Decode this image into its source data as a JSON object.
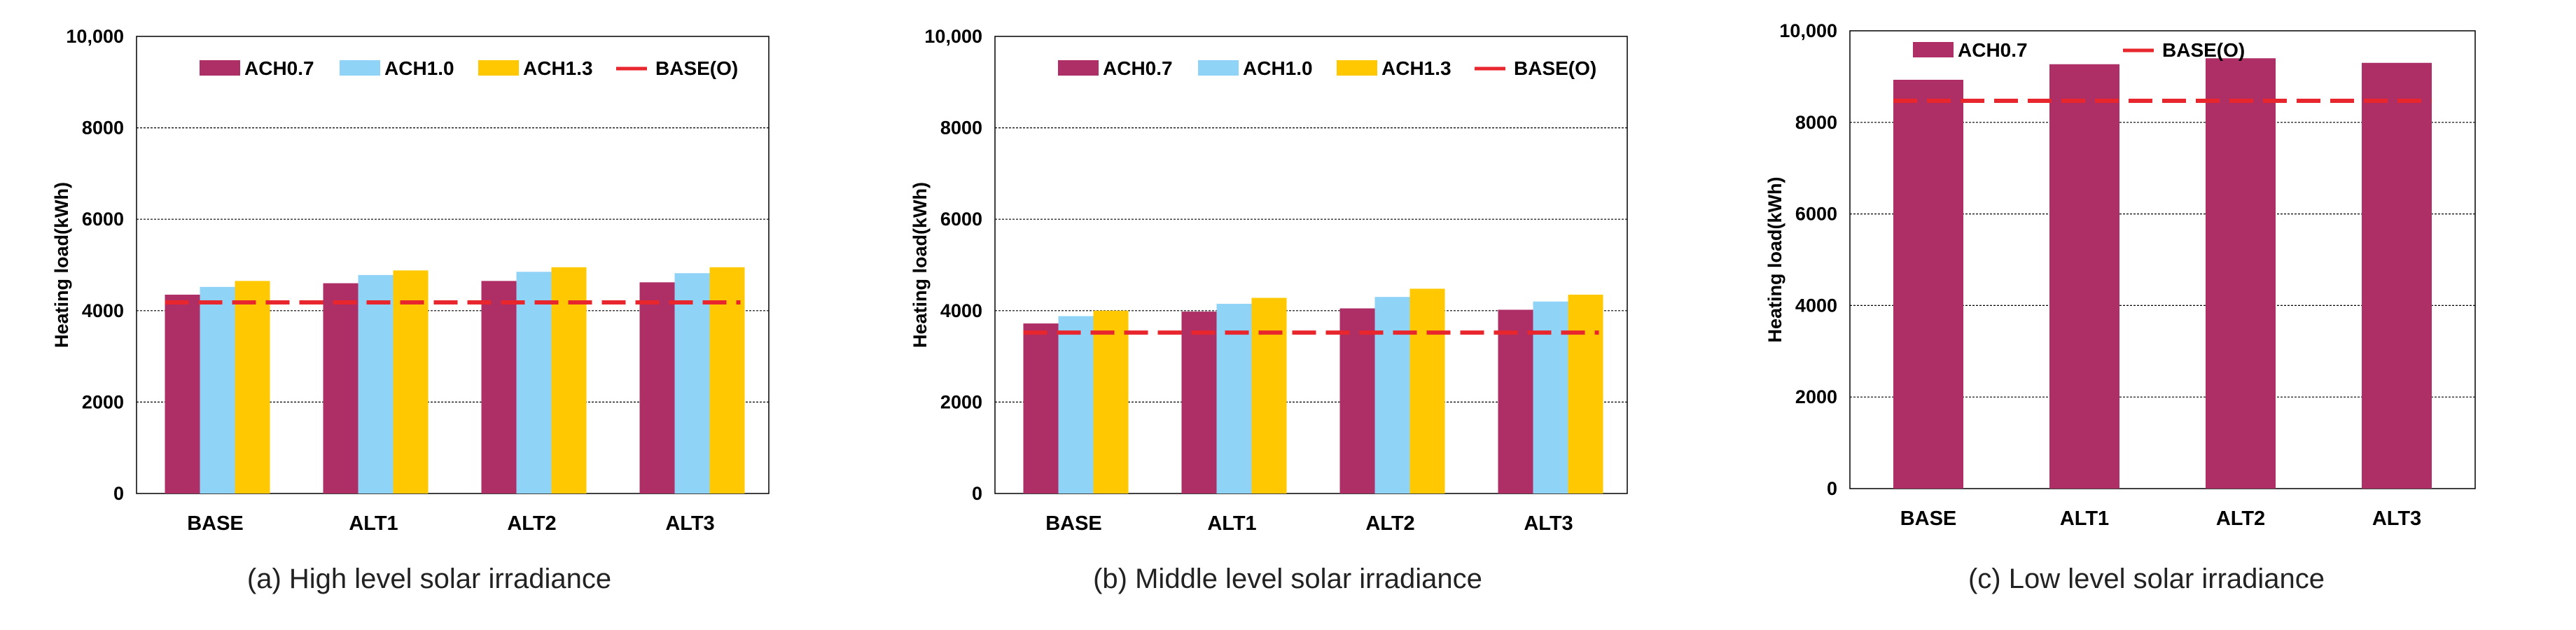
{
  "chart_data": [
    {
      "type": "bar",
      "caption": "(a) High level solar irradiance",
      "ylabel": "Heating load(kWh)",
      "ylim": [
        0,
        10000
      ],
      "yticks": [
        "0",
        "2000",
        "4000",
        "6000",
        "8000",
        "10,000"
      ],
      "categories": [
        "BASE",
        "ALT1",
        "ALT2",
        "ALT3"
      ],
      "series": [
        {
          "name": "ACH0.7",
          "color": "#ad2f65",
          "values": [
            4350,
            4600,
            4650,
            4620
          ]
        },
        {
          "name": "ACH1.0",
          "color": "#8fd3f7",
          "values": [
            4520,
            4780,
            4850,
            4820
          ]
        },
        {
          "name": "ACH1.3",
          "color": "#ffc800",
          "values": [
            4650,
            4880,
            4950,
            4950
          ]
        }
      ],
      "reference": {
        "name": "BASE(O)",
        "color": "#e8262d",
        "value": 4180
      },
      "legend": [
        "ACH0.7",
        "ACH1.0",
        "ACH1.3",
        "BASE(O)"
      ]
    },
    {
      "type": "bar",
      "caption": "(b) Middle level solar irradiance",
      "ylabel": "Heating load(kWh)",
      "ylim": [
        0,
        10000
      ],
      "yticks": [
        "0",
        "2000",
        "4000",
        "6000",
        "8000",
        "10,000"
      ],
      "categories": [
        "BASE",
        "ALT1",
        "ALT2",
        "ALT3"
      ],
      "series": [
        {
          "name": "ACH0.7",
          "color": "#ad2f65",
          "values": [
            3720,
            3980,
            4050,
            4020
          ]
        },
        {
          "name": "ACH1.0",
          "color": "#8fd3f7",
          "values": [
            3880,
            4150,
            4300,
            4200
          ]
        },
        {
          "name": "ACH1.3",
          "color": "#ffc800",
          "values": [
            4000,
            4280,
            4480,
            4350
          ]
        }
      ],
      "reference": {
        "name": "BASE(O)",
        "color": "#e8262d",
        "value": 3520
      },
      "legend": [
        "ACH0.7",
        "ACH1.0",
        "ACH1.3",
        "BASE(O)"
      ]
    },
    {
      "type": "bar",
      "caption": "(c) Low level solar irradiance",
      "ylabel": "Heating load(kWh)",
      "ylim": [
        0,
        10000
      ],
      "yticks": [
        "0",
        "2000",
        "4000",
        "6000",
        "8000",
        "10,000"
      ],
      "categories": [
        "BASE",
        "ALT1",
        "ALT2",
        "ALT3"
      ],
      "series": [
        {
          "name": "ACH0.7",
          "color": "#ad2f65",
          "values": [
            8930,
            9270,
            9400,
            9300
          ]
        }
      ],
      "reference": {
        "name": "BASE(O)",
        "color": "#e8262d",
        "value": 8470
      },
      "legend": [
        "ACH0.7",
        "BASE(O)"
      ]
    }
  ]
}
